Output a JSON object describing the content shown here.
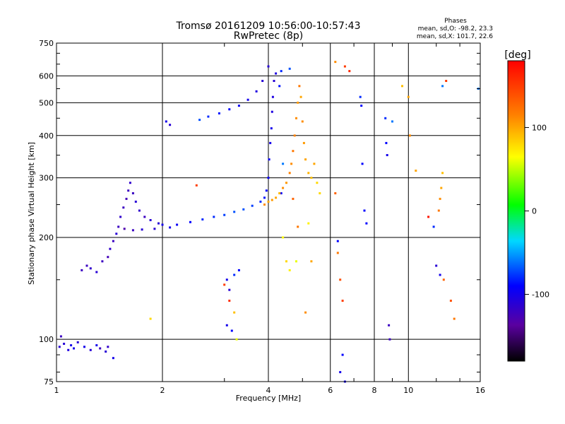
{
  "chart_data": {
    "type": "scatter",
    "title": "Tromsø 20161209 10:56:00-10:57:43",
    "subtitle": "RwPretec (8p)",
    "xlabel": "Frequency [MHz]",
    "ylabel": "Stationary phase Virtual Height [km]",
    "x_scale": "log",
    "y_scale": "log",
    "xlim": [
      1,
      16
    ],
    "ylim": [
      75,
      750
    ],
    "x_ticks": [
      1,
      2,
      4,
      6,
      8,
      10,
      16
    ],
    "y_ticks": [
      75,
      100,
      200,
      300,
      400,
      500,
      600,
      750
    ],
    "grid": true,
    "phase_info": {
      "title": "Phases",
      "line_o": "mean, sd,O: -98.2, 23.3",
      "line_x": "mean, sd,X: 101.7, 22.6"
    },
    "colorbar": {
      "label": "[deg]",
      "range": [
        -180,
        180
      ],
      "ticks": [
        100,
        0,
        -100
      ],
      "colormap": "rainbow"
    },
    "series": [
      {
        "name": "O",
        "mean_phase": -98.2,
        "sd_phase": 23.3,
        "points": [
          [
            1.02,
            95,
            -110
          ],
          [
            1.05,
            97,
            -110
          ],
          [
            1.08,
            93,
            -105
          ],
          [
            1.1,
            96,
            -100
          ],
          [
            1.12,
            94,
            -100
          ],
          [
            1.15,
            98,
            -110
          ],
          [
            1.2,
            95,
            -100
          ],
          [
            1.25,
            93,
            -110
          ],
          [
            1.3,
            96,
            -100
          ],
          [
            1.33,
            94,
            -120
          ],
          [
            1.38,
            92,
            -110
          ],
          [
            1.4,
            95,
            -115
          ],
          [
            1.03,
            102,
            -120
          ],
          [
            1.45,
            88,
            -100
          ],
          [
            1.18,
            160,
            -120
          ],
          [
            1.22,
            165,
            -120
          ],
          [
            1.25,
            162,
            -115
          ],
          [
            1.3,
            158,
            -110
          ],
          [
            1.35,
            170,
            -120
          ],
          [
            1.4,
            175,
            -125
          ],
          [
            1.42,
            185,
            -115
          ],
          [
            1.45,
            195,
            -120
          ],
          [
            1.48,
            205,
            -110
          ],
          [
            1.5,
            215,
            -120
          ],
          [
            1.52,
            230,
            -115
          ],
          [
            1.55,
            245,
            -120
          ],
          [
            1.58,
            260,
            -125
          ],
          [
            1.6,
            275,
            -120
          ],
          [
            1.62,
            290,
            -115
          ],
          [
            1.65,
            270,
            -120
          ],
          [
            1.68,
            255,
            -110
          ],
          [
            1.72,
            240,
            -115
          ],
          [
            1.78,
            230,
            -120
          ],
          [
            1.85,
            225,
            -110
          ],
          [
            1.95,
            220,
            -110
          ],
          [
            2.0,
            218,
            -100
          ],
          [
            1.56,
            212,
            -130
          ],
          [
            1.65,
            210,
            -120
          ],
          [
            1.75,
            211,
            -110
          ],
          [
            1.9,
            212,
            -110
          ],
          [
            2.1,
            214,
            -100
          ],
          [
            2.2,
            218,
            -95
          ],
          [
            2.4,
            222,
            -90
          ],
          [
            2.6,
            226,
            -80
          ],
          [
            2.8,
            230,
            -80
          ],
          [
            3.0,
            233,
            -75
          ],
          [
            3.2,
            238,
            -70
          ],
          [
            3.4,
            242,
            -70
          ],
          [
            3.6,
            248,
            -75
          ],
          [
            3.8,
            255,
            -80
          ],
          [
            3.9,
            262,
            -85
          ],
          [
            3.95,
            275,
            -90
          ],
          [
            4.0,
            300,
            -95
          ],
          [
            4.02,
            340,
            -95
          ],
          [
            4.05,
            380,
            -100
          ],
          [
            4.08,
            420,
            -100
          ],
          [
            4.1,
            470,
            -105
          ],
          [
            4.12,
            520,
            -105
          ],
          [
            4.15,
            580,
            -110
          ],
          [
            2.55,
            445,
            -70
          ],
          [
            2.7,
            455,
            -80
          ],
          [
            2.9,
            465,
            -85
          ],
          [
            3.1,
            478,
            -90
          ],
          [
            3.3,
            490,
            -95
          ],
          [
            3.5,
            510,
            -100
          ],
          [
            3.7,
            540,
            -105
          ],
          [
            3.85,
            580,
            -110
          ],
          [
            4.0,
            640,
            -110
          ],
          [
            4.2,
            610,
            -105
          ],
          [
            2.1,
            430,
            -110
          ],
          [
            2.05,
            440,
            -100
          ],
          [
            4.3,
            560,
            -85
          ],
          [
            4.35,
            620,
            -80
          ],
          [
            4.6,
            630,
            -70
          ],
          [
            4.4,
            330,
            -60
          ],
          [
            4.35,
            270,
            -90
          ],
          [
            3.05,
            150,
            -100
          ],
          [
            3.1,
            140,
            -110
          ],
          [
            3.2,
            155,
            -80
          ],
          [
            3.3,
            160,
            -90
          ],
          [
            3.05,
            110,
            -100
          ],
          [
            3.15,
            106,
            -90
          ],
          [
            6.3,
            195,
            -90
          ],
          [
            6.5,
            90,
            -90
          ],
          [
            6.4,
            80,
            -100
          ],
          [
            6.6,
            75,
            -100
          ],
          [
            7.3,
            520,
            -80
          ],
          [
            7.35,
            490,
            -90
          ],
          [
            7.4,
            330,
            -90
          ],
          [
            7.5,
            240,
            -90
          ],
          [
            7.6,
            220,
            -90
          ],
          [
            8.6,
            450,
            -80
          ],
          [
            8.65,
            380,
            -90
          ],
          [
            8.7,
            350,
            -100
          ],
          [
            8.8,
            110,
            -120
          ],
          [
            8.85,
            100,
            -120
          ],
          [
            9.0,
            440,
            -60
          ],
          [
            11.8,
            215,
            -80
          ],
          [
            12.0,
            165,
            -110
          ],
          [
            12.3,
            155,
            -100
          ],
          [
            12.5,
            560,
            -60
          ],
          [
            15.8,
            550,
            -60
          ]
        ]
      },
      {
        "name": "X",
        "mean_phase": 101.7,
        "sd_phase": 22.6,
        "points": [
          [
            3.9,
            250,
            110
          ],
          [
            4.0,
            255,
            100
          ],
          [
            4.1,
            258,
            105
          ],
          [
            4.2,
            262,
            100
          ],
          [
            4.3,
            270,
            95
          ],
          [
            4.4,
            280,
            110
          ],
          [
            4.5,
            290,
            105
          ],
          [
            4.6,
            310,
            115
          ],
          [
            4.65,
            330,
            110
          ],
          [
            4.7,
            360,
            120
          ],
          [
            4.75,
            400,
            115
          ],
          [
            4.8,
            450,
            110
          ],
          [
            4.85,
            500,
            105
          ],
          [
            4.9,
            560,
            120
          ],
          [
            4.95,
            520,
            100
          ],
          [
            5.0,
            440,
            110
          ],
          [
            5.05,
            380,
            105
          ],
          [
            5.1,
            340,
            100
          ],
          [
            5.2,
            310,
            95
          ],
          [
            5.3,
            300,
            90
          ],
          [
            5.4,
            330,
            100
          ],
          [
            5.5,
            290,
            80
          ],
          [
            5.6,
            270,
            80
          ],
          [
            4.8,
            170,
            60
          ],
          [
            4.6,
            160,
            70
          ],
          [
            4.5,
            170,
            80
          ],
          [
            4.4,
            200,
            65
          ],
          [
            4.7,
            260,
            130
          ],
          [
            4.85,
            215,
            120
          ],
          [
            5.2,
            220,
            70
          ],
          [
            5.3,
            170,
            100
          ],
          [
            5.1,
            120,
            110
          ],
          [
            2.5,
            285,
            150
          ],
          [
            1.85,
            115,
            80
          ],
          [
            3.0,
            145,
            150
          ],
          [
            3.1,
            130,
            160
          ],
          [
            3.2,
            120,
            90
          ],
          [
            3.25,
            100,
            60
          ],
          [
            6.2,
            270,
            130
          ],
          [
            6.3,
            180,
            120
          ],
          [
            6.4,
            150,
            140
          ],
          [
            6.5,
            130,
            150
          ],
          [
            6.6,
            640,
            150
          ],
          [
            6.8,
            620,
            160
          ],
          [
            6.2,
            660,
            110
          ],
          [
            9.6,
            560,
            90
          ],
          [
            10.0,
            520,
            100
          ],
          [
            10.1,
            400,
            110
          ],
          [
            10.5,
            315,
            100
          ],
          [
            11.4,
            230,
            170
          ],
          [
            12.2,
            240,
            120
          ],
          [
            12.3,
            260,
            110
          ],
          [
            12.4,
            280,
            100
          ],
          [
            12.5,
            310,
            90
          ],
          [
            12.6,
            150,
            130
          ],
          [
            12.8,
            580,
            150
          ],
          [
            13.2,
            130,
            140
          ],
          [
            13.5,
            115,
            120
          ]
        ]
      }
    ]
  }
}
